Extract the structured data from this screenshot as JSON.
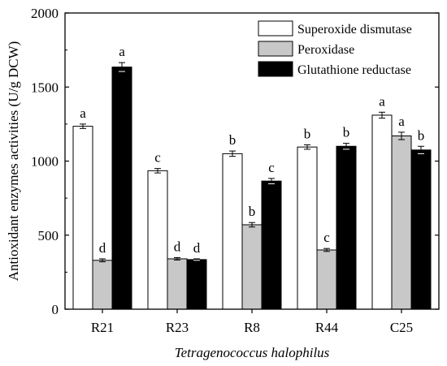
{
  "chart_data": {
    "type": "bar",
    "xlabel": "Tetragenococcus halophilus",
    "ylabel": "Antioxidant enzymes activities (U/g DCW)",
    "ylim": [
      0,
      2000
    ],
    "yticks": [
      0,
      500,
      1000,
      1500,
      2000
    ],
    "categories": [
      "R21",
      "R23",
      "R8",
      "R44",
      "C25"
    ],
    "series": [
      {
        "name": "Superoxide dismutase",
        "color": "#ffffff",
        "values": [
          1235,
          935,
          1050,
          1095,
          1310
        ],
        "errors": [
          15,
          15,
          18,
          15,
          20
        ],
        "labels": [
          "a",
          "c",
          "b",
          "b",
          "a"
        ]
      },
      {
        "name": "Peroxidase",
        "color": "#c8c8c8",
        "values": [
          330,
          340,
          570,
          400,
          1170
        ],
        "errors": [
          10,
          8,
          15,
          10,
          25
        ],
        "labels": [
          "d",
          "d",
          "b",
          "c",
          "a"
        ]
      },
      {
        "name": "Glutathione reductase",
        "color": "#000000",
        "values": [
          1635,
          335,
          865,
          1100,
          1075
        ],
        "errors": [
          30,
          5,
          18,
          20,
          25
        ],
        "labels": [
          "a",
          "d",
          "c",
          "b",
          "b"
        ]
      }
    ],
    "legend_position": "top-right",
    "grid": false
  }
}
